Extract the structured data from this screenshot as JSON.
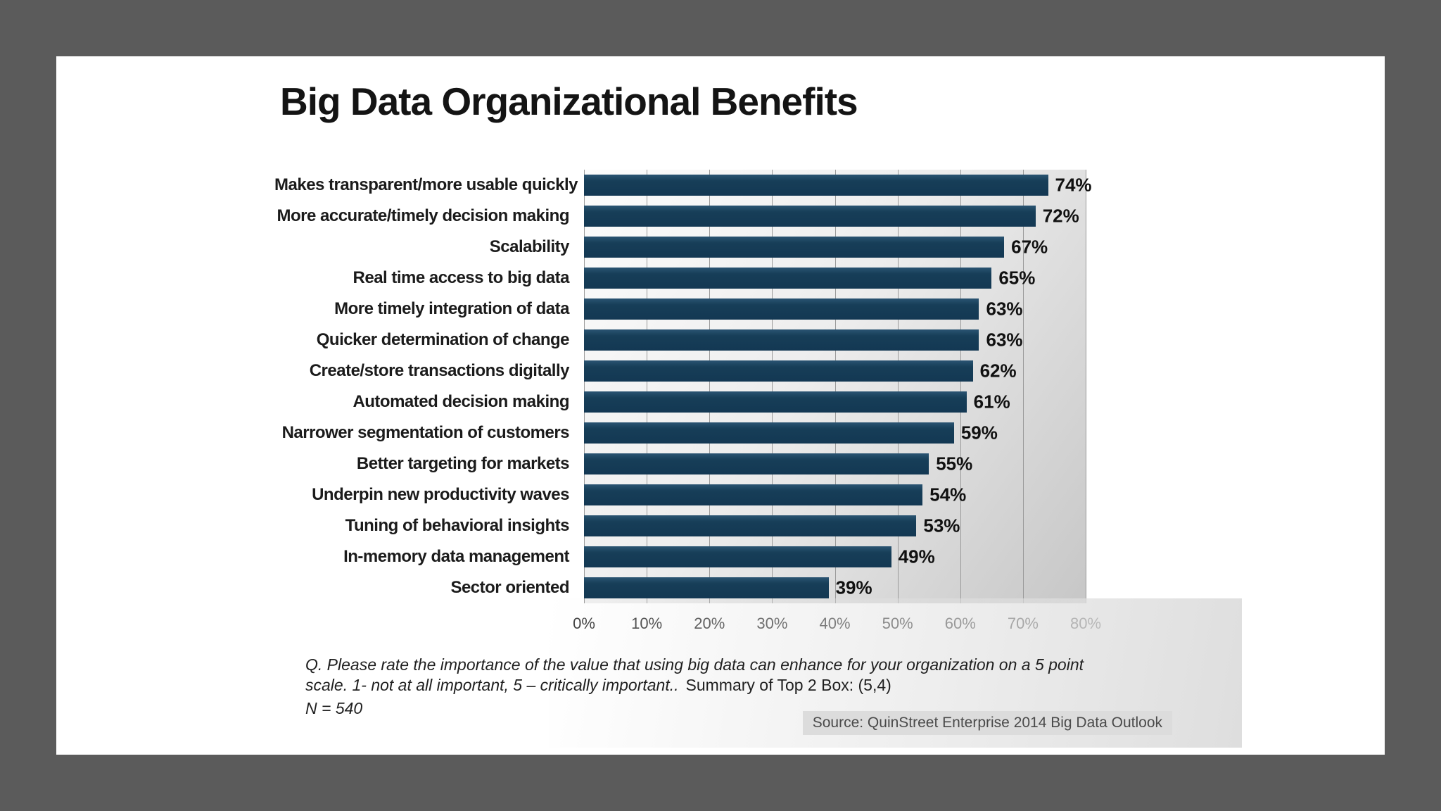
{
  "page": {
    "background_color": "#5b5b5b",
    "panel_color": "#ffffff"
  },
  "title": "Big Data Organizational Benefits",
  "chart_data": {
    "type": "bar",
    "orientation": "horizontal",
    "title": "Big Data Organizational Benefits",
    "categories": [
      "Makes transparent/more usable quickly",
      "More accurate/timely decision making",
      "Scalability",
      "Real time access to big data",
      "More timely integration of data",
      "Quicker determination of change",
      "Create/store transactions digitally",
      "Automated decision making",
      "Narrower segmentation of customers",
      "Better targeting for markets",
      "Underpin new productivity waves",
      "Tuning of behavioral insights",
      "In-memory data management",
      "Sector oriented"
    ],
    "values": [
      74,
      72,
      67,
      65,
      63,
      63,
      62,
      61,
      59,
      55,
      54,
      53,
      49,
      39
    ],
    "value_suffix": "%",
    "xlabel": "",
    "ylabel": "",
    "xlim": [
      0,
      80
    ],
    "x_ticks": [
      "0%",
      "10%",
      "20%",
      "30%",
      "40%",
      "50%",
      "60%",
      "70%",
      "80%"
    ],
    "grid": true,
    "legend": "none",
    "bar_color": "#173e58",
    "plot_background": "gradient light gray"
  },
  "footnote": {
    "question_italic": "Q. Please rate the importance of the value that using big data can enhance for your organization on a 5 point scale. 1- not at all important, 5 – critically important..",
    "summary": "Summary of Top 2 Box:  (5,4)",
    "sample": "N = 540"
  },
  "source": "Source: QuinStreet Enterprise 2014 Big Data Outlook"
}
